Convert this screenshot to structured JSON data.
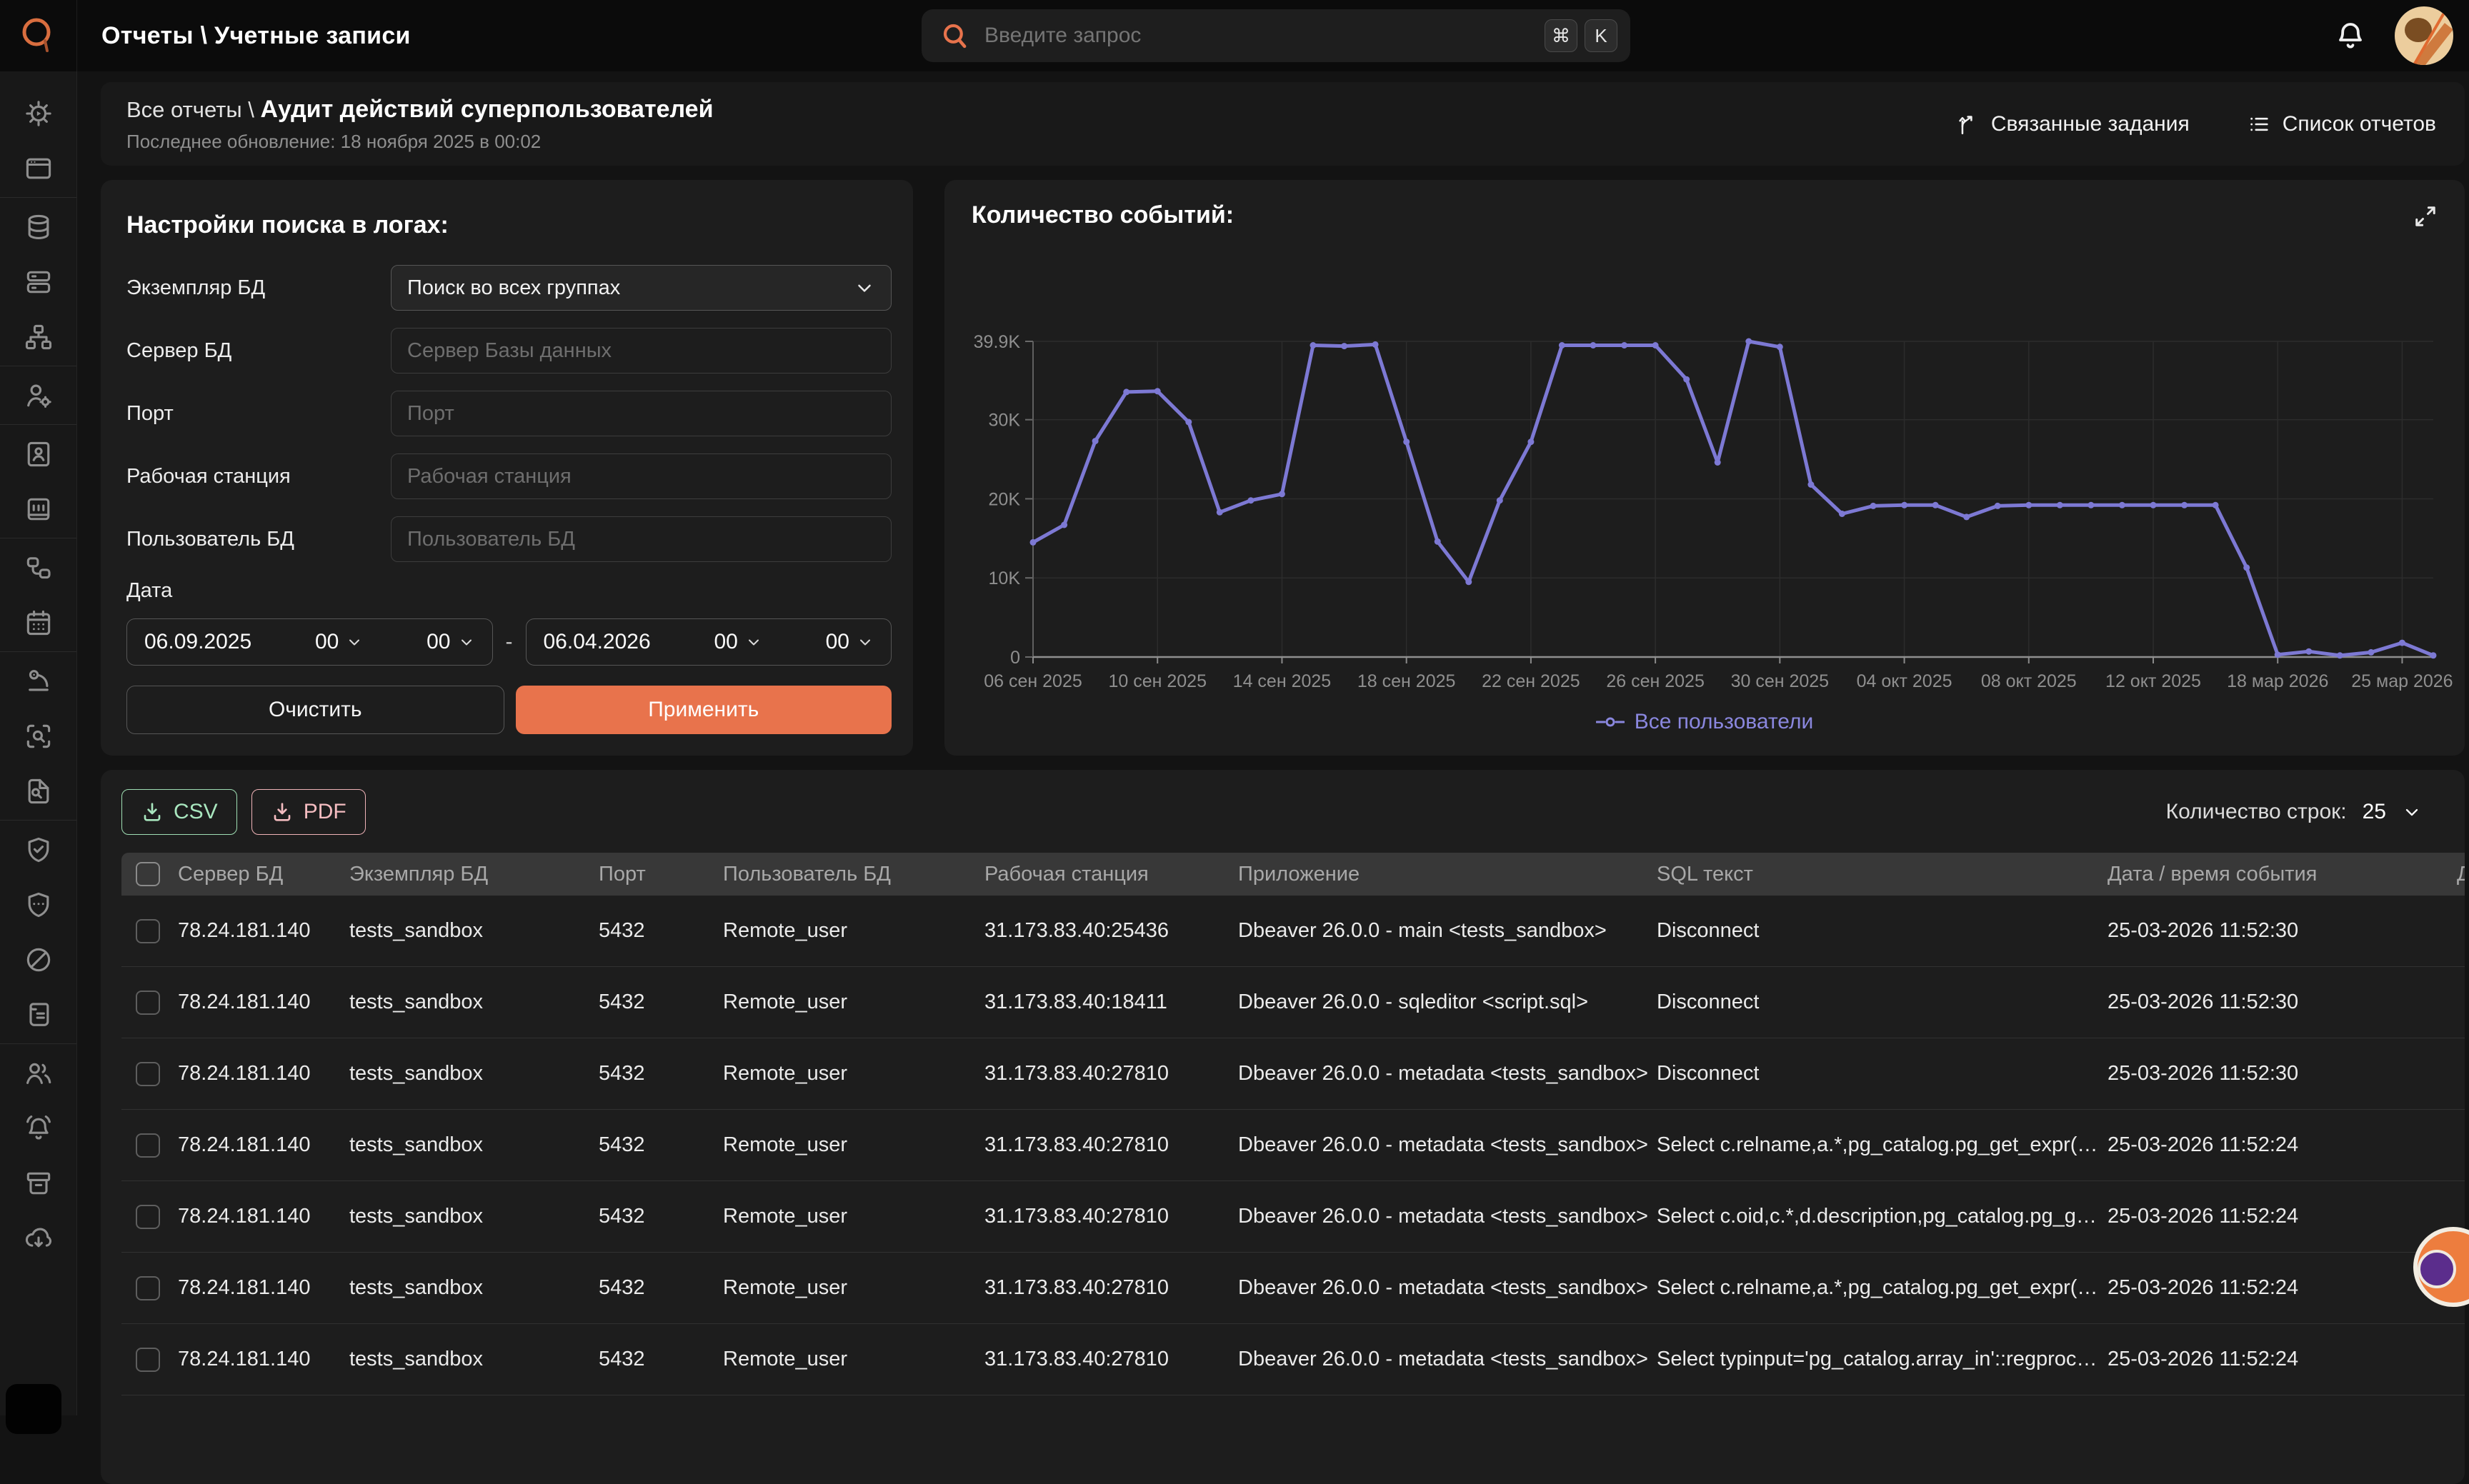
{
  "topbar": {
    "title": "Отчеты \\ Учетные записи",
    "search_placeholder": "Введите запрос",
    "shortcut_cmd": "⌘",
    "shortcut_key": "K"
  },
  "sidebar": {
    "groups": [
      [
        "settings-gear",
        "browser-window"
      ],
      [
        "database",
        "server-stack",
        "sitemap"
      ],
      [
        "user-gear"
      ],
      [
        "contact-book",
        "journal"
      ],
      [
        "link-nodes",
        "calendar"
      ],
      [
        "microscope",
        "scan-search",
        "file-search"
      ],
      [
        "shield-check",
        "shield-dots",
        "ban",
        "scroll"
      ],
      [
        "users",
        "bell-alert",
        "archive",
        "cloud-download"
      ]
    ]
  },
  "report_header": {
    "breadcrumb_prefix": "Все отчеты \\",
    "title": "Аудит действий суперпользователей",
    "updated": "Последнее обновление: 18 ноября 2025 в 00:02",
    "action_tasks": "Связанные задания",
    "action_reports": "Список отчетов"
  },
  "filters": {
    "title": "Настройки поиска в логах:",
    "instance_label": "Экземпляр БД",
    "instance_value": "Поиск во всех группах",
    "server_label": "Сервер БД",
    "server_placeholder": "Сервер Базы данных",
    "port_label": "Порт",
    "port_placeholder": "Порт",
    "workstation_label": "Рабочая станция",
    "workstation_placeholder": "Рабочая станция",
    "dbuser_label": "Пользователь БД",
    "dbuser_placeholder": "Пользователь БД",
    "date_label": "Дата",
    "date_from": {
      "date": "06.09.2025",
      "hh": "00",
      "mm": "00"
    },
    "date_to": {
      "date": "06.04.2026",
      "hh": "00",
      "mm": "00"
    },
    "range_dash": "-",
    "clear_label": "Очистить",
    "apply_label": "Применить"
  },
  "chart_panel": {
    "title": "Количество событий:",
    "legend": "Все пользователи"
  },
  "chart_data": {
    "type": "line",
    "title": "Количество событий",
    "series_name": "Все пользователи",
    "line_color": "#7d79d4",
    "grid": true,
    "legend_position": "bottom",
    "ylim": [
      0,
      39900
    ],
    "yticks": [
      {
        "value": 0,
        "label": "0"
      },
      {
        "value": 10000,
        "label": "10K"
      },
      {
        "value": 20000,
        "label": "20K"
      },
      {
        "value": 30000,
        "label": "30K"
      },
      {
        "value": 39900,
        "label": "39.9K"
      }
    ],
    "xticks": [
      {
        "index": 0,
        "label": "06 сен 2025"
      },
      {
        "index": 4,
        "label": "10 сен 2025"
      },
      {
        "index": 8,
        "label": "14 сен 2025"
      },
      {
        "index": 12,
        "label": "18 сен 2025"
      },
      {
        "index": 16,
        "label": "22 сен 2025"
      },
      {
        "index": 20,
        "label": "26 сен 2025"
      },
      {
        "index": 24,
        "label": "30 сен 2025"
      },
      {
        "index": 28,
        "label": "04 окт 2025"
      },
      {
        "index": 32,
        "label": "08 окт 2025"
      },
      {
        "index": 36,
        "label": "12 окт 2025"
      },
      {
        "index": 40,
        "label": "18 мар 2026"
      },
      {
        "index": 44,
        "label": "25 мар 2026"
      }
    ],
    "values": [
      14500,
      16700,
      27300,
      33500,
      33600,
      29700,
      18300,
      19800,
      20600,
      39400,
      39300,
      39500,
      27200,
      14600,
      9500,
      19800,
      27200,
      39400,
      39400,
      39400,
      39400,
      35100,
      24600,
      39900,
      39200,
      21800,
      18100,
      19100,
      19200,
      19200,
      17700,
      19100,
      19200,
      19200,
      19200,
      19200,
      19200,
      19200,
      19200,
      11300,
      300,
      700,
      200,
      600,
      1800,
      200
    ]
  },
  "table": {
    "export_csv": "CSV",
    "export_pdf": "PDF",
    "rows_count_label": "Количество строк:",
    "rows_count_value": "25",
    "columns": [
      "Сервер БД",
      "Экземпляр БД",
      "Порт",
      "Пользователь БД",
      "Рабочая станция",
      "Приложение",
      "SQL текст",
      "Дата / время события",
      "Д"
    ],
    "rows": [
      [
        "78.24.181.140",
        "tests_sandbox",
        "5432",
        "Remote_user",
        "31.173.83.40:25436",
        "Dbeaver 26.0.0 - main <tests_sandbox>",
        "Disconnect",
        "25-03-2026 11:52:30",
        ""
      ],
      [
        "78.24.181.140",
        "tests_sandbox",
        "5432",
        "Remote_user",
        "31.173.83.40:18411",
        "Dbeaver 26.0.0 - sqleditor <script.sql>",
        "Disconnect",
        "25-03-2026 11:52:30",
        ""
      ],
      [
        "78.24.181.140",
        "tests_sandbox",
        "5432",
        "Remote_user",
        "31.173.83.40:27810",
        "Dbeaver 26.0.0 - metadata <tests_sandbox>",
        "Disconnect",
        "25-03-2026 11:52:30",
        ""
      ],
      [
        "78.24.181.140",
        "tests_sandbox",
        "5432",
        "Remote_user",
        "31.173.83.40:27810",
        "Dbeaver 26.0.0 - metadata <tests_sandbox>",
        "Select c.relname,a.*,pg_catalog.pg_get_expr(…",
        "25-03-2026 11:52:24",
        ""
      ],
      [
        "78.24.181.140",
        "tests_sandbox",
        "5432",
        "Remote_user",
        "31.173.83.40:27810",
        "Dbeaver 26.0.0 - metadata <tests_sandbox>",
        "Select c.oid,c.*,d.description,pg_catalog.pg_g…",
        "25-03-2026 11:52:24",
        ""
      ],
      [
        "78.24.181.140",
        "tests_sandbox",
        "5432",
        "Remote_user",
        "31.173.83.40:27810",
        "Dbeaver 26.0.0 - metadata <tests_sandbox>",
        "Select c.relname,a.*,pg_catalog.pg_get_expr(…",
        "25-03-2026 11:52:24",
        ""
      ],
      [
        "78.24.181.140",
        "tests_sandbox",
        "5432",
        "Remote_user",
        "31.173.83.40:27810",
        "Dbeaver 26.0.0 - metadata <tests_sandbox>",
        "Select typinput='pg_catalog.array_in'::regproc…",
        "25-03-2026 11:52:24",
        ""
      ]
    ]
  },
  "colors": {
    "accent_orange": "#e8734c",
    "chart_line": "#7d79d4",
    "legend_text": "#8a87de",
    "csv_green": "#a9e7bf",
    "pdf_pink": "#f4bcc0",
    "panel_bg": "#1d1d1d",
    "topbar_bg": "#0b0b0b"
  }
}
